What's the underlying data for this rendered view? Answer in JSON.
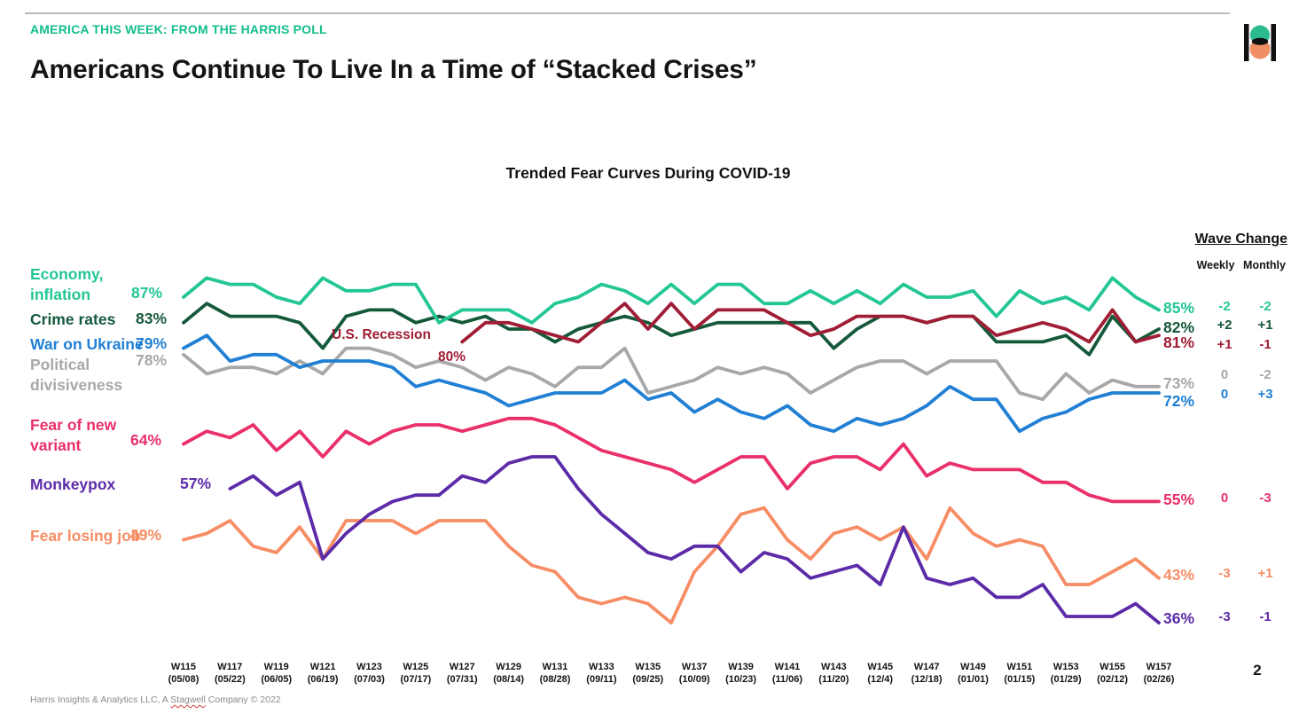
{
  "page": {
    "kicker": "AMERICA THIS WEEK: FROM THE HARRIS POLL",
    "title": "Americans Continue To Live In a Time of “Stacked Crises”",
    "footer_prefix": "Harris Insights & Analytics LLC, A ",
    "footer_stagwell": "Stagwell",
    "footer_suffix": " Company © 2022",
    "page_number": "2",
    "accent_color": "#12be8c",
    "logo_colors": {
      "bars": "#101010",
      "top_circle": "#2bbb8e",
      "bottom_circle": "#f08f66"
    }
  },
  "chart_data": {
    "type": "line",
    "title": "Trended Fear Curves During COVID-19",
    "wave_change_header": "Wave Change",
    "wave_change_columns": [
      "Weekly",
      "Monthly"
    ],
    "grid": false,
    "legend_position": "left-inline",
    "ylim": [
      30,
      95
    ],
    "x_weeks_start": 115,
    "x_weeks_end": 157,
    "annotation": {
      "text": "U.S. Recession",
      "value_label": "80%",
      "color": "#a01d35"
    },
    "x_axis": [
      {
        "week": "W115",
        "date": "(05/08)"
      },
      {
        "week": "W117",
        "date": "(05/22)"
      },
      {
        "week": "W119",
        "date": "(06/05)"
      },
      {
        "week": "W121",
        "date": "(06/19)"
      },
      {
        "week": "W123",
        "date": "(07/03)"
      },
      {
        "week": "W125",
        "date": "(07/17)"
      },
      {
        "week": "W127",
        "date": "(07/31)"
      },
      {
        "week": "W129",
        "date": "(08/14)"
      },
      {
        "week": "W131",
        "date": "(08/28)"
      },
      {
        "week": "W133",
        "date": "(09/11)"
      },
      {
        "week": "W135",
        "date": "(09/25)"
      },
      {
        "week": "W137",
        "date": "(10/09)"
      },
      {
        "week": "W139",
        "date": "(10/23)"
      },
      {
        "week": "W141",
        "date": "(11/06)"
      },
      {
        "week": "W143",
        "date": "(11/20)"
      },
      {
        "week": "W145",
        "date": "(12/4)"
      },
      {
        "week": "W147",
        "date": "(12/18)"
      },
      {
        "week": "W149",
        "date": "(01/01)"
      },
      {
        "week": "W151",
        "date": "(01/15)"
      },
      {
        "week": "W153",
        "date": "(01/29)"
      },
      {
        "week": "W155",
        "date": "(02/12)"
      },
      {
        "week": "W157",
        "date": "(02/26)"
      }
    ],
    "series": [
      {
        "id": "economy-inflation",
        "label_lines": [
          "Economy,",
          "inflation"
        ],
        "color": "#23c695",
        "start_week": 115,
        "start_label": "87%",
        "end_label": "85%",
        "weekly_change": "-2",
        "monthly_change": "-2",
        "values": [
          87,
          90,
          89,
          89,
          87,
          86,
          90,
          88,
          88,
          89,
          89,
          83,
          85,
          85,
          85,
          83,
          86,
          87,
          89,
          88,
          86,
          89,
          86,
          89,
          89,
          86,
          86,
          88,
          86,
          88,
          86,
          89,
          87,
          87,
          88,
          84,
          88,
          86,
          87,
          85,
          90,
          87,
          85
        ]
      },
      {
        "id": "crime-rates",
        "label_lines": [
          "Crime rates"
        ],
        "color": "#15593b",
        "start_week": 115,
        "start_label": "83%",
        "end_label": "82%",
        "weekly_change": "+2",
        "monthly_change": "+1",
        "values": [
          83,
          86,
          84,
          84,
          84,
          83,
          79,
          84,
          85,
          85,
          83,
          84,
          83,
          84,
          82,
          82,
          80,
          82,
          83,
          84,
          83,
          81,
          82,
          83,
          83,
          83,
          83,
          83,
          79,
          82,
          84,
          84,
          83,
          84,
          84,
          80,
          80,
          80,
          81,
          78,
          84,
          80,
          82
        ]
      },
      {
        "id": "us-recession",
        "label_lines": [],
        "color": "#a01d35",
        "start_week": 127,
        "start_label": "80%",
        "end_label": "81%",
        "weekly_change": "+1",
        "monthly_change": "-1",
        "values": [
          80,
          83,
          83,
          82,
          81,
          80,
          83,
          86,
          82,
          86,
          82,
          85,
          85,
          85,
          83,
          81,
          82,
          84,
          84,
          84,
          83,
          84,
          84,
          81,
          82,
          83,
          82,
          80,
          85,
          80,
          81
        ]
      },
      {
        "id": "war-on-ukraine",
        "label_lines": [
          "War on Ukraine"
        ],
        "color": "#2180d4",
        "start_week": 115,
        "start_label": "79%",
        "end_label": "72%",
        "weekly_change": "0",
        "monthly_change": "+3",
        "values": [
          79,
          81,
          77,
          78,
          78,
          76,
          77,
          77,
          77,
          76,
          73,
          74,
          73,
          72,
          70,
          71,
          72,
          72,
          72,
          74,
          71,
          72,
          69,
          71,
          69,
          68,
          70,
          67,
          66,
          68,
          67,
          68,
          70,
          73,
          71,
          71,
          66,
          68,
          69,
          71,
          72,
          72,
          72
        ]
      },
      {
        "id": "political-divisiveness",
        "label_lines": [
          "Political",
          "divisiveness"
        ],
        "color": "#a8a8a8",
        "start_week": 115,
        "start_label": "78%",
        "end_label": "73%",
        "weekly_change": "0",
        "monthly_change": "-2",
        "values": [
          78,
          75,
          76,
          76,
          75,
          77,
          75,
          79,
          79,
          78,
          76,
          77,
          76,
          74,
          76,
          75,
          73,
          76,
          76,
          79,
          72,
          73,
          74,
          76,
          75,
          76,
          75,
          72,
          74,
          76,
          77,
          77,
          75,
          77,
          77,
          77,
          72,
          71,
          75,
          72,
          74,
          73,
          73
        ]
      },
      {
        "id": "fear-of-new-variant",
        "label_lines": [
          "Fear of new",
          "variant"
        ],
        "color": "#e93069",
        "start_week": 115,
        "start_label": "64%",
        "end_label": "55%",
        "weekly_change": "0",
        "monthly_change": "-3",
        "values": [
          64,
          66,
          65,
          67,
          63,
          66,
          62,
          66,
          64,
          66,
          67,
          67,
          66,
          67,
          68,
          68,
          67,
          65,
          63,
          62,
          61,
          60,
          58,
          60,
          62,
          62,
          57,
          61,
          62,
          62,
          60,
          64,
          59,
          61,
          60,
          60,
          60,
          58,
          58,
          56,
          55,
          55,
          55
        ]
      },
      {
        "id": "monkeypox",
        "label_lines": [
          "Monkeypox"
        ],
        "color": "#5c2ba8",
        "start_week": 117,
        "start_label": "57%",
        "end_label": "36%",
        "weekly_change": "-3",
        "monthly_change": "-1",
        "values": [
          57,
          59,
          56,
          58,
          46,
          50,
          53,
          55,
          56,
          56,
          59,
          58,
          61,
          62,
          62,
          57,
          53,
          50,
          47,
          46,
          48,
          48,
          44,
          47,
          46,
          43,
          44,
          45,
          42,
          51,
          43,
          42,
          43,
          40,
          40,
          42,
          37,
          37,
          37,
          39,
          36
        ]
      },
      {
        "id": "fear-losing-job",
        "label_lines": [
          "Fear losing job"
        ],
        "color": "#f68d65",
        "start_week": 115,
        "start_label": "49%",
        "end_label": "43%",
        "weekly_change": "-3",
        "monthly_change": "+1",
        "values": [
          49,
          50,
          52,
          48,
          47,
          51,
          46,
          52,
          52,
          52,
          50,
          52,
          52,
          52,
          48,
          45,
          44,
          40,
          39,
          40,
          39,
          36,
          44,
          48,
          53,
          54,
          49,
          46,
          50,
          51,
          49,
          51,
          46,
          54,
          50,
          48,
          49,
          48,
          42,
          42,
          44,
          46,
          43
        ]
      }
    ]
  }
}
